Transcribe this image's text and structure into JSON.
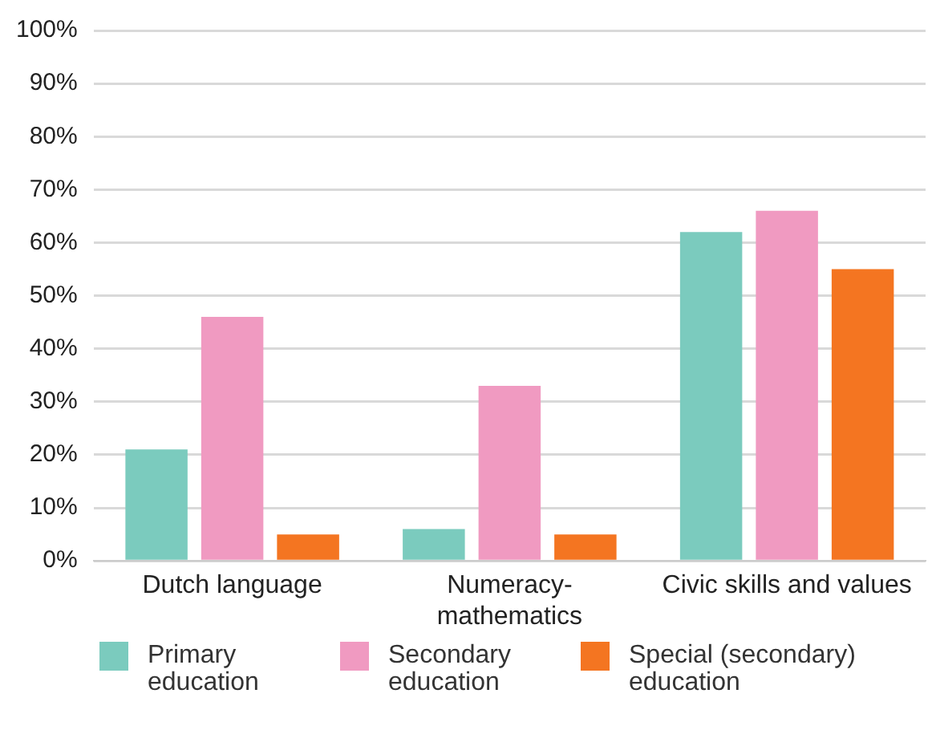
{
  "chart_data": {
    "type": "bar",
    "categories": [
      "Dutch language",
      "Numeracy-mathematics",
      "Civic skills and values"
    ],
    "series": [
      {
        "name": "Primary education",
        "color": "#7bcbbe",
        "values": [
          21,
          6,
          62
        ]
      },
      {
        "name": "Secondary education",
        "color": "#f09ac1",
        "values": [
          46,
          33,
          66
        ]
      },
      {
        "name": "Special (secondary) education",
        "color": "#f47521",
        "values": [
          5,
          5,
          55
        ]
      }
    ],
    "ylim": [
      0,
      100
    ],
    "yticks": [
      {
        "value": 0,
        "label": "0%"
      },
      {
        "value": 10,
        "label": "10%"
      },
      {
        "value": 20,
        "label": "20%"
      },
      {
        "value": 30,
        "label": "30%"
      },
      {
        "value": 40,
        "label": "40%"
      },
      {
        "value": 50,
        "label": "50%"
      },
      {
        "value": 60,
        "label": "60%"
      },
      {
        "value": 70,
        "label": "70%"
      },
      {
        "value": 80,
        "label": "80%"
      },
      {
        "value": 90,
        "label": "90%"
      },
      {
        "value": 100,
        "label": "100%"
      }
    ],
    "grid": "y",
    "legend": "bottom"
  }
}
